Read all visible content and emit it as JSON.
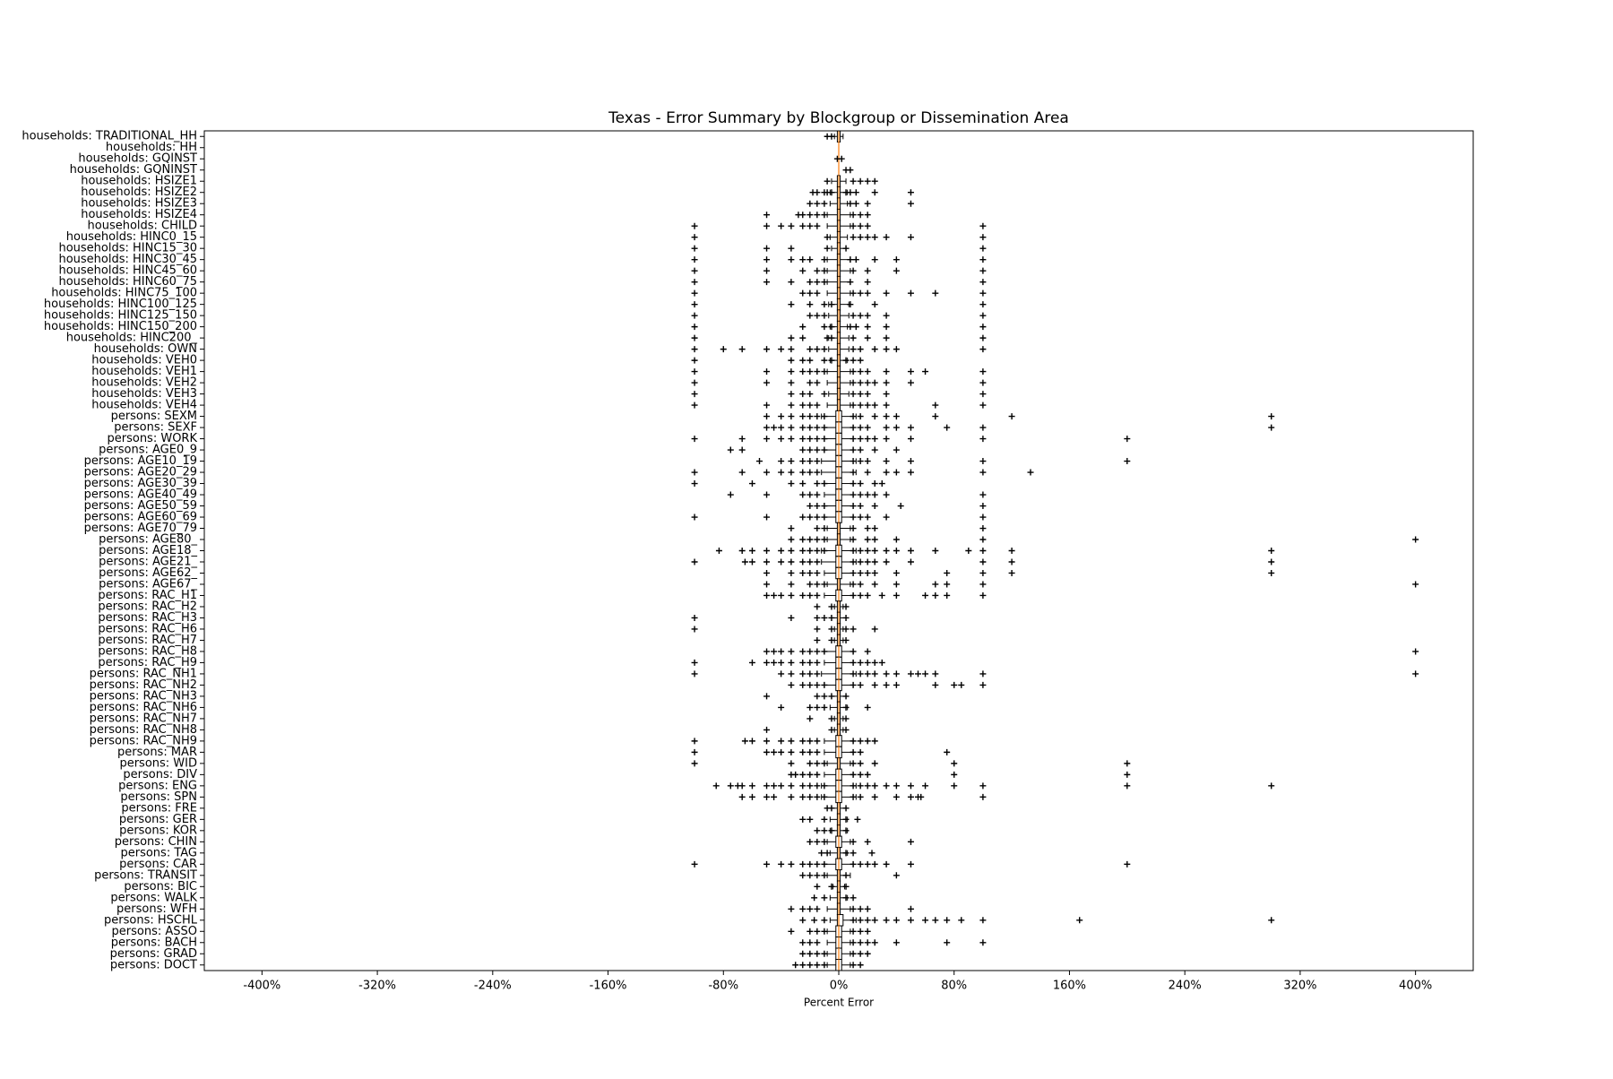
{
  "chart_data": {
    "type": "boxplot",
    "orientation": "horizontal",
    "title": "Texas - Error Summary by Blockgroup or Dissemination Area",
    "xlabel": "Percent Error",
    "categories": [
      "households: TRADITIONAL_HH",
      "households: HH",
      "households: GQINST",
      "households: GQNINST",
      "households: HSIZE1",
      "households: HSIZE2",
      "households: HSIZE3",
      "households: HSIZE4",
      "households: CHILD",
      "households: HINC0_15",
      "households: HINC15_30",
      "households: HINC30_45",
      "households: HINC45_60",
      "households: HINC60_75",
      "households: HINC75_100",
      "households: HINC100_125",
      "households: HINC125_150",
      "households: HINC150_200",
      "households: HINC200_",
      "households: OWN",
      "households: VEH0",
      "households: VEH1",
      "households: VEH2",
      "households: VEH3",
      "households: VEH4",
      "persons: SEXM",
      "persons: SEXF",
      "persons: WORK",
      "persons: AGE0_9",
      "persons: AGE10_19",
      "persons: AGE20_29",
      "persons: AGE30_39",
      "persons: AGE40_49",
      "persons: AGE50_59",
      "persons: AGE60_69",
      "persons: AGE70_79",
      "persons: AGE80_",
      "persons: AGE18_",
      "persons: AGE21_",
      "persons: AGE62_",
      "persons: AGE67_",
      "persons: RAC_H1",
      "persons: RAC_H2",
      "persons: RAC_H3",
      "persons: RAC_H6",
      "persons: RAC_H7",
      "persons: RAC_H8",
      "persons: RAC_H9",
      "persons: RAC_NH1",
      "persons: RAC_NH2",
      "persons: RAC_NH3",
      "persons: RAC_NH6",
      "persons: RAC_NH7",
      "persons: RAC_NH8",
      "persons: RAC_NH9",
      "persons: MAR",
      "persons: WID",
      "persons: DIV",
      "persons: ENG",
      "persons: SPN",
      "persons: FRE",
      "persons: GER",
      "persons: KOR",
      "persons: CHIN",
      "persons: TAG",
      "persons: CAR",
      "persons: TRANSIT",
      "persons: BIC",
      "persons: WALK",
      "persons: WFH",
      "persons: HSCHL",
      "persons: ASSO",
      "persons: BACH",
      "persons: GRAD",
      "persons: DOCT"
    ],
    "whislo": [
      -3,
      0,
      0,
      0,
      -5,
      -6,
      -6,
      -8,
      -8,
      -6,
      -5,
      -8,
      -8,
      -8,
      -8,
      -7,
      -7,
      -6,
      -7,
      -7,
      -6,
      -8,
      -8,
      -7,
      -8,
      -12,
      -10,
      -10,
      -10,
      -12,
      -12,
      -10,
      -10,
      -10,
      -10,
      -8,
      -8,
      -12,
      -12,
      -10,
      -8,
      -10,
      -3,
      -5,
      -3,
      -3,
      -10,
      -10,
      -12,
      -10,
      -5,
      -6,
      -3,
      -3,
      -10,
      -10,
      -8,
      -10,
      -12,
      -12,
      -5,
      -6,
      -6,
      -8,
      -6,
      -10,
      -8,
      -4,
      -6,
      -8,
      -6,
      -8,
      -8,
      -8,
      -8
    ],
    "q1": [
      -1,
      0,
      0,
      0,
      -1,
      -1,
      -1,
      -1,
      -1,
      -1,
      -1,
      -1,
      -1,
      -1,
      -1,
      -1,
      -1,
      -1,
      -1,
      -1,
      -1,
      -1,
      -1,
      -1,
      -1,
      -2,
      -2,
      -2,
      -2,
      -2,
      -2,
      -2,
      -2,
      -2,
      -2,
      -1,
      -1,
      -2,
      -2,
      -2,
      -1,
      -2,
      -1,
      -1,
      -1,
      -1,
      -2,
      -2,
      -2,
      -2,
      -1,
      -1,
      -1,
      -1,
      -2,
      -2,
      -1,
      -2,
      -2,
      -2,
      -1,
      -1,
      -1,
      -2,
      -1,
      -2,
      -1,
      -1,
      -1,
      -1,
      -1,
      -2,
      -2,
      -2,
      -2
    ],
    "median": [
      0,
      0,
      0,
      0,
      0,
      0,
      0,
      0,
      0,
      0,
      0,
      0,
      0,
      0,
      0,
      0,
      0,
      0,
      0,
      0,
      0,
      0,
      0,
      0,
      0,
      0,
      0,
      0,
      0,
      0,
      0,
      0,
      0,
      0,
      0,
      0,
      0,
      0,
      0,
      0,
      0,
      0,
      0,
      0,
      0,
      0,
      0,
      0,
      0,
      0,
      0,
      0,
      0,
      0,
      0,
      0,
      0,
      0,
      0,
      0,
      0,
      0,
      0,
      0,
      0,
      0,
      0,
      0,
      0,
      0,
      0,
      0,
      0,
      0,
      0
    ],
    "q3": [
      1,
      0,
      0,
      0,
      1,
      1,
      1,
      1,
      1,
      1,
      1,
      1,
      1,
      1,
      1,
      1,
      1,
      1,
      1,
      1,
      1,
      1,
      1,
      1,
      1,
      2,
      2,
      2,
      2,
      2,
      2,
      2,
      2,
      2,
      2,
      1,
      1,
      2,
      2,
      2,
      1,
      2,
      1,
      1,
      1,
      1,
      2,
      2,
      2,
      2,
      1,
      1,
      1,
      1,
      2,
      2,
      1,
      2,
      2,
      2,
      1,
      1,
      1,
      2,
      1,
      2,
      1,
      1,
      1,
      1,
      3,
      2,
      2,
      2,
      2
    ],
    "whishi": [
      3,
      0,
      0,
      0,
      5,
      6,
      6,
      8,
      8,
      6,
      5,
      8,
      8,
      8,
      8,
      7,
      7,
      6,
      7,
      7,
      6,
      8,
      8,
      7,
      8,
      12,
      10,
      10,
      10,
      12,
      12,
      10,
      10,
      10,
      10,
      8,
      8,
      12,
      12,
      10,
      8,
      10,
      3,
      5,
      3,
      3,
      10,
      10,
      12,
      10,
      5,
      6,
      3,
      3,
      10,
      10,
      8,
      10,
      12,
      12,
      5,
      6,
      6,
      8,
      6,
      10,
      8,
      4,
      6,
      8,
      12,
      8,
      8,
      8,
      8
    ],
    "fliers": [
      [
        -8,
        -5
      ],
      [],
      [
        -1,
        2
      ],
      [
        5,
        8
      ],
      [
        -8,
        10,
        15,
        20,
        25
      ],
      [
        -18,
        -15,
        -10,
        -8,
        -5,
        5,
        8,
        12,
        25,
        50
      ],
      [
        -20,
        -15,
        -10,
        8,
        12,
        20,
        50
      ],
      [
        -50,
        -28,
        -25,
        -20,
        -15,
        -10,
        10,
        15,
        20
      ],
      [
        -100,
        -50,
        -40,
        -33,
        -25,
        -20,
        -15,
        10,
        15,
        20,
        100
      ],
      [
        -100,
        -8,
        10,
        15,
        20,
        25,
        33,
        50,
        100
      ],
      [
        -100,
        -50,
        -33,
        -8,
        5,
        100
      ],
      [
        -100,
        -50,
        -33,
        -25,
        -20,
        -10,
        8,
        12,
        25,
        40,
        100
      ],
      [
        -100,
        -50,
        -25,
        -15,
        -10,
        10,
        20,
        40,
        100
      ],
      [
        -100,
        -50,
        -33,
        -20,
        -15,
        -10,
        8,
        20,
        100
      ],
      [
        -100,
        -25,
        -20,
        -15,
        10,
        15,
        20,
        33,
        50,
        67,
        100
      ],
      [
        -100,
        -33,
        -20,
        -10,
        -5,
        8,
        25,
        100
      ],
      [
        -100,
        -20,
        -15,
        -10,
        10,
        15,
        20,
        33,
        100
      ],
      [
        -100,
        -25,
        -10,
        -5,
        8,
        12,
        20,
        33,
        100
      ],
      [
        -100,
        -33,
        -25,
        -8,
        -5,
        10,
        20,
        33,
        100
      ],
      [
        -100,
        -80,
        -67,
        -50,
        -40,
        -33,
        -20,
        -15,
        -10,
        10,
        15,
        25,
        33,
        40,
        100
      ],
      [
        -100,
        -33,
        -25,
        -20,
        -10,
        -5,
        5,
        10,
        15
      ],
      [
        -100,
        -50,
        -33,
        -25,
        -20,
        -15,
        -10,
        10,
        15,
        20,
        33,
        50,
        60,
        100
      ],
      [
        -100,
        -50,
        -33,
        -20,
        -15,
        10,
        15,
        20,
        25,
        33,
        50,
        100
      ],
      [
        -100,
        -33,
        -25,
        -20,
        -10,
        10,
        15,
        20,
        33,
        100
      ],
      [
        -100,
        -50,
        -33,
        -25,
        -20,
        -15,
        10,
        15,
        20,
        25,
        33,
        67,
        100
      ],
      [
        -50,
        -40,
        -33,
        -25,
        -20,
        -15,
        -10,
        10,
        15,
        25,
        33,
        40,
        67,
        120,
        300
      ],
      [
        -50,
        -45,
        -40,
        -33,
        -25,
        -20,
        -15,
        -10,
        10,
        15,
        20,
        33,
        40,
        50,
        75,
        100,
        300
      ],
      [
        -100,
        -67,
        -50,
        -40,
        -33,
        -25,
        -20,
        -15,
        -10,
        10,
        15,
        20,
        25,
        33,
        50,
        100,
        200
      ],
      [
        -75,
        -67,
        -25,
        -20,
        -15,
        -10,
        10,
        15,
        25,
        40
      ],
      [
        -55,
        -40,
        -33,
        -25,
        -20,
        -15,
        10,
        15,
        20,
        33,
        50,
        100,
        200
      ],
      [
        -100,
        -67,
        -50,
        -40,
        -33,
        -25,
        -20,
        -15,
        10,
        20,
        33,
        40,
        50,
        100,
        133
      ],
      [
        -100,
        -60,
        -33,
        -25,
        -15,
        -10,
        10,
        15,
        25,
        30
      ],
      [
        -75,
        -50,
        -25,
        -20,
        -15,
        10,
        15,
        20,
        25,
        33,
        100
      ],
      [
        -20,
        -15,
        -10,
        10,
        15,
        25,
        43,
        100
      ],
      [
        -100,
        -50,
        -25,
        -20,
        -15,
        -10,
        10,
        15,
        20,
        33,
        100
      ],
      [
        -33,
        -15,
        -10,
        10,
        20,
        25,
        100
      ],
      [
        -33,
        -25,
        -20,
        -15,
        -10,
        10,
        20,
        25,
        40,
        100,
        400
      ],
      [
        -83,
        -67,
        -60,
        -50,
        -40,
        -33,
        -25,
        -20,
        -15,
        -10,
        10,
        15,
        20,
        25,
        33,
        40,
        50,
        67,
        90,
        100,
        120,
        300
      ],
      [
        -100,
        -65,
        -60,
        -50,
        -40,
        -33,
        -25,
        -20,
        -15,
        10,
        15,
        20,
        25,
        33,
        50,
        100,
        120,
        300
      ],
      [
        -50,
        -33,
        -25,
        -20,
        -15,
        10,
        15,
        20,
        25,
        40,
        75,
        100,
        120,
        300
      ],
      [
        -50,
        -33,
        -20,
        -15,
        -10,
        10,
        15,
        25,
        40,
        67,
        75,
        100,
        400
      ],
      [
        -50,
        -45,
        -40,
        -33,
        -25,
        -20,
        -15,
        10,
        15,
        20,
        30,
        40,
        60,
        67,
        75,
        100
      ],
      [
        -15,
        -5,
        5
      ],
      [
        -100,
        -33,
        -15,
        -10,
        -5,
        5
      ],
      [
        -100,
        -15,
        -5,
        5,
        10,
        25
      ],
      [
        -15,
        -5,
        5
      ],
      [
        -50,
        -45,
        -40,
        -33,
        -25,
        -20,
        -15,
        -10,
        10,
        20,
        400
      ],
      [
        -100,
        -60,
        -50,
        -45,
        -40,
        -33,
        -25,
        -20,
        -15,
        10,
        15,
        20,
        25,
        30
      ],
      [
        -100,
        -40,
        -33,
        -25,
        -20,
        -15,
        10,
        15,
        20,
        25,
        33,
        40,
        50,
        55,
        60,
        67,
        100,
        400
      ],
      [
        -33,
        -25,
        -20,
        -15,
        -10,
        10,
        15,
        25,
        33,
        40,
        67,
        80,
        85,
        100
      ],
      [
        -50,
        -15,
        -10,
        -5,
        5
      ],
      [
        -40,
        -20,
        -15,
        -10,
        5,
        20
      ],
      [
        -20,
        -5,
        5
      ],
      [
        -50,
        -5,
        5
      ],
      [
        -100,
        -65,
        -60,
        -50,
        -40,
        -33,
        -25,
        -20,
        -15,
        10,
        15,
        20,
        25
      ],
      [
        -100,
        -50,
        -45,
        -40,
        -33,
        -25,
        -20,
        -15,
        10,
        15,
        75
      ],
      [
        -100,
        -33,
        -20,
        -15,
        -10,
        10,
        15,
        25,
        80,
        200
      ],
      [
        -33,
        -30,
        -25,
        -20,
        -15,
        10,
        15,
        20,
        80,
        200
      ],
      [
        -85,
        -75,
        -70,
        -67,
        -60,
        -50,
        -45,
        -40,
        -33,
        -25,
        -20,
        -15,
        -10,
        10,
        15,
        20,
        25,
        33,
        40,
        50,
        60,
        80,
        100,
        200,
        300
      ],
      [
        -67,
        -60,
        -50,
        -45,
        -33,
        -25,
        -20,
        -15,
        -10,
        10,
        15,
        25,
        40,
        50,
        55,
        57,
        100
      ],
      [
        -8,
        -5,
        5
      ],
      [
        -25,
        -20,
        -10,
        5,
        13
      ],
      [
        -15,
        -10,
        -5,
        5
      ],
      [
        -20,
        -15,
        -10,
        10,
        20,
        50
      ],
      [
        -12,
        -8,
        5,
        10,
        23
      ],
      [
        -100,
        -50,
        -40,
        -33,
        -25,
        -20,
        -15,
        -10,
        10,
        15,
        20,
        25,
        33,
        50,
        200
      ],
      [
        -25,
        -20,
        -15,
        -10,
        5,
        40
      ],
      [
        -15,
        -5,
        5
      ],
      [
        -17,
        -10,
        5,
        10
      ],
      [
        -33,
        -25,
        -20,
        -15,
        10,
        15,
        20,
        50
      ],
      [
        -25,
        -17,
        -10,
        10,
        15,
        20,
        25,
        33,
        40,
        50,
        60,
        67,
        75,
        85,
        100,
        167,
        300
      ],
      [
        -33,
        -20,
        -15,
        -10,
        10,
        15,
        20
      ],
      [
        -25,
        -20,
        -15,
        10,
        15,
        20,
        25,
        40,
        75,
        100
      ],
      [
        -25,
        -20,
        -15,
        -10,
        10,
        15,
        20
      ],
      [
        -30,
        -25,
        -20,
        -15,
        -10,
        10,
        15
      ]
    ],
    "xlim": [
      -440,
      440
    ],
    "xticks": [
      {
        "value": -400,
        "label": "-400%"
      },
      {
        "value": -320,
        "label": "-320%"
      },
      {
        "value": -240,
        "label": "-240%"
      },
      {
        "value": -160,
        "label": "-160%"
      },
      {
        "value": -80,
        "label": "-80%"
      },
      {
        "value": 0,
        "label": "0%"
      },
      {
        "value": 80,
        "label": "80%"
      },
      {
        "value": 160,
        "label": "160%"
      },
      {
        "value": 240,
        "label": "240%"
      },
      {
        "value": 320,
        "label": "320%"
      },
      {
        "value": 400,
        "label": "400%"
      }
    ],
    "box_color": "#000000",
    "median_color": "#ff7f0e",
    "flier_color": "#000000"
  }
}
